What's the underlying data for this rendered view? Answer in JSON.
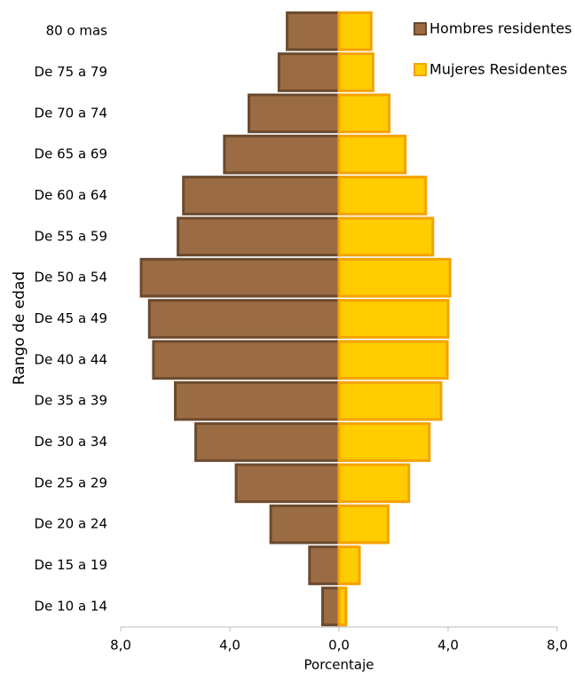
{
  "chart_data": {
    "type": "bar",
    "orientation": "horizontal",
    "ylabel": "Rango de edad",
    "xlabel": "Porcentaje",
    "categories": [
      "80 o mas",
      "De 75 a 79",
      "De 70 a 74",
      "De 65 a 69",
      "De 60 a 64",
      "De 55 a 59",
      "De 50 a 54",
      "De 45 a 49",
      "De 40 a 44",
      "De 35 a 39",
      "De 30 a 34",
      "De 25 a 29",
      "De 20 a 24",
      "De 15 a 19",
      "De 10 a 14"
    ],
    "series": [
      {
        "name": "Hombres residentes",
        "color": "#9b6b43",
        "edgecolor": "#6b4a2e",
        "values": [
          -1.9,
          -2.2,
          -3.3,
          -4.2,
          -5.7,
          -5.9,
          -7.25,
          -6.95,
          -6.8,
          -6.0,
          -5.25,
          -3.77,
          -2.5,
          -1.08,
          -0.6
        ]
      },
      {
        "name": "Mujeres Residentes",
        "color": "#ffcc00",
        "edgecolor": "#f5a200",
        "values": [
          1.18,
          1.25,
          1.84,
          2.43,
          3.18,
          3.44,
          4.07,
          4.0,
          3.97,
          3.74,
          3.31,
          2.56,
          1.8,
          0.75,
          0.26
        ]
      }
    ],
    "xlim": [
      -8,
      8
    ],
    "xticks": [
      {
        "value": -8,
        "label": "8,0"
      },
      {
        "value": -4,
        "label": "4,0"
      },
      {
        "value": 0,
        "label": "0,0"
      },
      {
        "value": 4,
        "label": "4,0"
      },
      {
        "value": 8,
        "label": "8,0"
      }
    ],
    "legend": "upper right"
  }
}
